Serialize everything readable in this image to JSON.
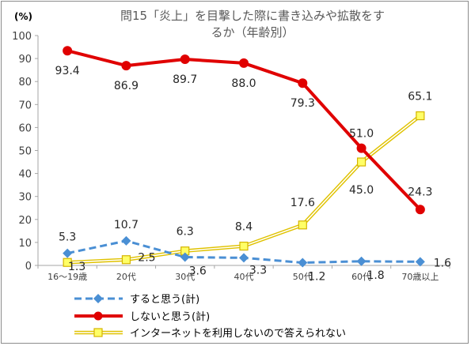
{
  "chart_data": {
    "type": "line",
    "title": "問15「炎上」を目撃した際に書き込みや拡散をするか（年齢別）",
    "title_lines": [
      "問15「炎上」を目撃した際に書き込みや拡散をす",
      "るか（年齢別）"
    ],
    "unit_label": "(%)",
    "ylim": [
      0,
      100
    ],
    "ytick_step": 10,
    "grid": false,
    "legend_position": "bottom",
    "categories": [
      "16〜19歳",
      "20代",
      "30代",
      "40代",
      "50代",
      "60代",
      "70歳以上"
    ],
    "series": [
      {
        "name": "すると思う(計)",
        "values": [
          5.3,
          10.7,
          3.6,
          3.3,
          1.2,
          1.8,
          1.6
        ],
        "labels": [
          "5.3",
          "10.7",
          "3.6",
          "3.3",
          "1.2",
          "1.8",
          "1.6"
        ],
        "color": "#4a8fd4",
        "style": "dashed-diamond"
      },
      {
        "name": "しないと思う(計)",
        "values": [
          93.4,
          86.9,
          89.7,
          88.0,
          79.3,
          51.0,
          24.3
        ],
        "labels": [
          "93.4",
          "86.9",
          "89.7",
          "88.0",
          "79.3",
          "51.0",
          "24.3"
        ],
        "color": "#e00000",
        "style": "solid-circle"
      },
      {
        "name": "インターネットを利用しないので答えられない",
        "values": [
          1.3,
          2.5,
          6.3,
          8.4,
          17.6,
          45.0,
          65.1
        ],
        "labels": [
          "1.3",
          "2.5",
          "6.3",
          "8.4",
          "17.6",
          "45.0",
          "65.1"
        ],
        "color": "#f5d800",
        "style": "double-square"
      }
    ]
  }
}
